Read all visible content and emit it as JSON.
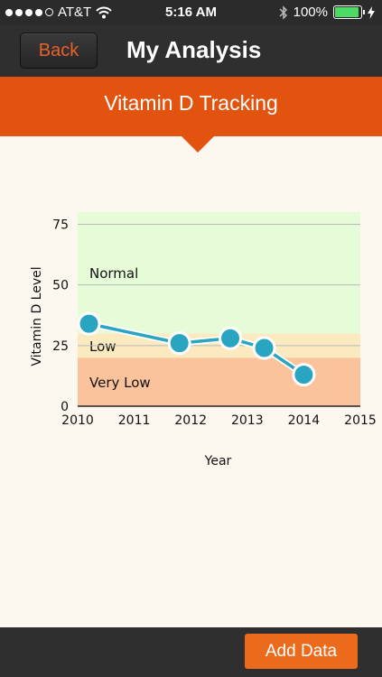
{
  "status_bar": {
    "carrier": "AT&T",
    "time": "5:16 AM",
    "battery": "100%",
    "signal_bars_filled": 4,
    "signal_bars_total": 5
  },
  "nav": {
    "back_label": "Back",
    "title": "My Analysis"
  },
  "banner": {
    "title": "Vitamin D Tracking"
  },
  "chart_data": {
    "type": "line",
    "title": "",
    "xlabel": "Year",
    "ylabel": "Vitamin D Level",
    "xlim": [
      2010,
      2015
    ],
    "ylim": [
      0,
      80
    ],
    "x_ticks": [
      "2010",
      "2011",
      "2012",
      "2013",
      "2014",
      "2015"
    ],
    "y_ticks": [
      "0",
      "25",
      "50",
      "75"
    ],
    "bands": [
      {
        "name": "Very Low",
        "from": 0,
        "to": 20,
        "color": "#fbc39c"
      },
      {
        "name": "Low",
        "from": 20,
        "to": 30,
        "color": "#fbe9bf"
      },
      {
        "name": "Normal",
        "from": 30,
        "to": 80,
        "color": "#e6fcd8"
      }
    ],
    "series": [
      {
        "color": "#29a5c2",
        "x": [
          2010.2,
          2011.8,
          2012.7,
          2013.3,
          2014.0
        ],
        "y": [
          34,
          26,
          28,
          24,
          13
        ]
      }
    ],
    "grid": true
  },
  "bottom_bar": {
    "add_label": "Add Data"
  }
}
